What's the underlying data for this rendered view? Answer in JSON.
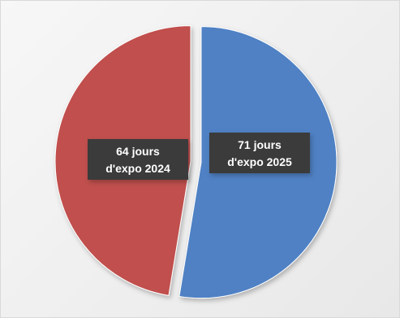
{
  "chart_data": {
    "type": "pie",
    "title": "",
    "slices": [
      {
        "label_line1": "71 jours",
        "label_line2": "d'expo 2025",
        "value": 71,
        "color": "#4f81c4"
      },
      {
        "label_line1": "64 jours",
        "label_line2": "d'expo 2024",
        "value": 64,
        "color": "#c0504d"
      }
    ],
    "start_angle_deg": 0,
    "direction": "clockwise",
    "exploded": true,
    "legend": "none",
    "label_box_color": "#3a3a3a"
  }
}
